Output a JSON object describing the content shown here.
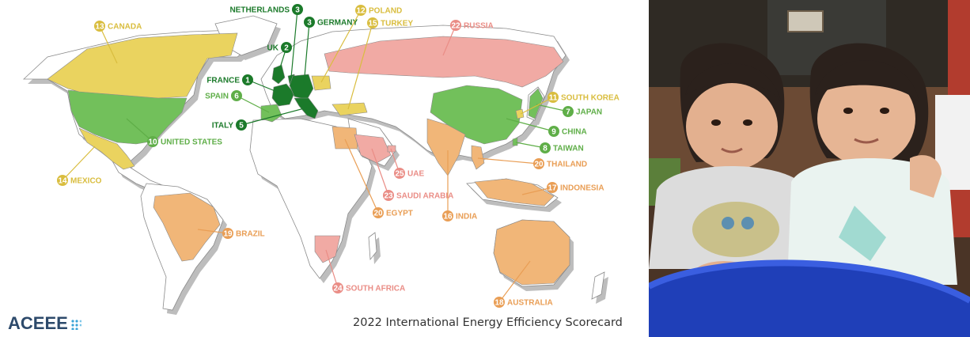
{
  "map": {
    "colors": {
      "rank_1_5": "#1b7a2a",
      "rank_6_10": "#72c05b",
      "rank_11_15": "#ead35f",
      "rank_16_20": "#f1b678",
      "rank_21_25": "#f1aaa4",
      "unranked": "#ffffff",
      "border": "#8a8a8a",
      "shadow": "#bdbdbd"
    },
    "countries": [
      {
        "rank": "1",
        "name": "FRANCE",
        "tier": "rank_1_5"
      },
      {
        "rank": "2",
        "name": "UK",
        "tier": "rank_1_5"
      },
      {
        "rank": "3",
        "name": "NETHERLANDS",
        "tier": "rank_1_5"
      },
      {
        "rank": "3",
        "name": "GERMANY",
        "tier": "rank_1_5"
      },
      {
        "rank": "5",
        "name": "ITALY",
        "tier": "rank_1_5"
      },
      {
        "rank": "6",
        "name": "SPAIN",
        "tier": "rank_6_10"
      },
      {
        "rank": "7",
        "name": "JAPAN",
        "tier": "rank_6_10"
      },
      {
        "rank": "8",
        "name": "TAIWAN",
        "tier": "rank_6_10"
      },
      {
        "rank": "9",
        "name": "CHINA",
        "tier": "rank_6_10"
      },
      {
        "rank": "10",
        "name": "UNITED STATES",
        "tier": "rank_6_10"
      },
      {
        "rank": "11",
        "name": "SOUTH KOREA",
        "tier": "rank_11_15"
      },
      {
        "rank": "12",
        "name": "POLAND",
        "tier": "rank_11_15"
      },
      {
        "rank": "13",
        "name": "CANADA",
        "tier": "rank_11_15"
      },
      {
        "rank": "14",
        "name": "MEXICO",
        "tier": "rank_11_15"
      },
      {
        "rank": "15",
        "name": "TURKEY",
        "tier": "rank_11_15"
      },
      {
        "rank": "16",
        "name": "INDIA",
        "tier": "rank_16_20"
      },
      {
        "rank": "17",
        "name": "INDONESIA",
        "tier": "rank_16_20"
      },
      {
        "rank": "18",
        "name": "AUSTRALIA",
        "tier": "rank_16_20"
      },
      {
        "rank": "19",
        "name": "BRAZIL",
        "tier": "rank_16_20"
      },
      {
        "rank": "20",
        "name": "THAILAND",
        "tier": "rank_16_20"
      },
      {
        "rank": "20",
        "name": "EGYPT",
        "tier": "rank_16_20"
      },
      {
        "rank": "22",
        "name": "RUSSIA",
        "tier": "rank_21_25"
      },
      {
        "rank": "23",
        "name": "SAUDI ARABIA",
        "tier": "rank_21_25"
      },
      {
        "rank": "24",
        "name": "SOUTH AFRICA",
        "tier": "rank_21_25"
      },
      {
        "rank": "25",
        "name": "UAE",
        "tier": "rank_21_25"
      }
    ]
  },
  "logo": {
    "text": "ACEEE",
    "color": "#2d4a6b"
  },
  "caption": {
    "text": "2022 International Energy Efficiency Scorecard"
  },
  "photo": {
    "colors": {
      "background": "#5a3e2c",
      "bucket": "#1f3fb8",
      "shirt_left": "#dcdcdc",
      "shirt_right": "#eaf3f0"
    }
  }
}
